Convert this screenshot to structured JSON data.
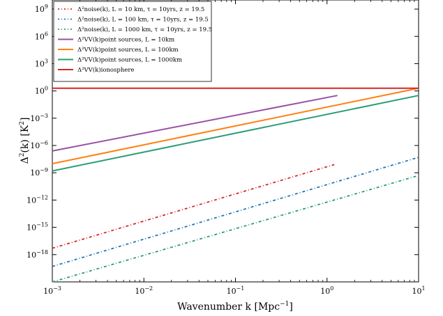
{
  "chart_data": {
    "type": "line",
    "xlabel": "Wavenumber k [Mpc",
    "xlabel_sup": "−1",
    "xlabel_end": "]",
    "ylabel": "Δ",
    "ylabel_sup": "2",
    "ylabel_mid": "(k) [K",
    "ylabel_sup2": "2",
    "ylabel_end": "]",
    "x_scale": "log",
    "y_scale": "log",
    "xlim": [
      0.001,
      10
    ],
    "ylim_exp": [
      -21,
      10
    ],
    "x_ticks": [
      {
        "value": 0.001,
        "base": "10",
        "exp": "−3"
      },
      {
        "value": 0.01,
        "base": "10",
        "exp": "−2"
      },
      {
        "value": 0.1,
        "base": "10",
        "exp": "−1"
      },
      {
        "value": 1,
        "base": "10",
        "exp": "0"
      },
      {
        "value": 10,
        "base": "10",
        "exp": "1"
      }
    ],
    "y_ticks": [
      {
        "exp_value": 9,
        "base": "10",
        "exp": "9"
      },
      {
        "exp_value": 6,
        "base": "10",
        "exp": "6"
      },
      {
        "exp_value": 3,
        "base": "10",
        "exp": "3"
      },
      {
        "exp_value": 0,
        "base": "10",
        "exp": "0"
      },
      {
        "exp_value": -3,
        "base": "10",
        "exp": "−3"
      },
      {
        "exp_value": -6,
        "base": "10",
        "exp": "−6"
      },
      {
        "exp_value": -9,
        "base": "10",
        "exp": "−9"
      },
      {
        "exp_value": -12,
        "base": "10",
        "exp": "−12"
      },
      {
        "exp_value": -15,
        "base": "10",
        "exp": "−15"
      },
      {
        "exp_value": -18,
        "base": "10",
        "exp": "−18"
      }
    ],
    "legend_position": "top-left",
    "series": [
      {
        "label": "Δ²noise(k), L = 10 km, τ = 10yrs, z = 19.5",
        "color": "#d62728",
        "style": "dashdot",
        "x": [
          0.001,
          1.2
        ],
        "y_exp": [
          -17.3,
          -8.1
        ]
      },
      {
        "label": "Δ²noise(k), L = 100 km, τ = 10yrs, z = 19.5",
        "color": "#1f77b4",
        "style": "dashdot",
        "x": [
          0.001,
          10
        ],
        "y_exp": [
          -19.3,
          -7.3
        ]
      },
      {
        "label": "Δ²noise(k), L = 1000 km, τ = 10yrs, z = 19.5",
        "color": "#2a9d74",
        "style": "dashdot",
        "x": [
          0.001,
          10
        ],
        "y_exp": [
          -21.0,
          -9.3
        ]
      },
      {
        "label": "Δ²VV(k)point sources, L = 10km",
        "color": "#9b4fa6",
        "style": "solid",
        "x": [
          0.001,
          1.3
        ],
        "y_exp": [
          -6.6,
          -0.5
        ]
      },
      {
        "label": "Δ²VV(k)point sources, L = 100km",
        "color": "#ff7f0e",
        "style": "solid",
        "x": [
          0.001,
          10
        ],
        "y_exp": [
          -8.0,
          0.3
        ]
      },
      {
        "label": "Δ²VV(k)point sources, L = 1000km",
        "color": "#2a9d74",
        "style": "solid",
        "x": [
          0.001,
          10
        ],
        "y_exp": [
          -8.8,
          -0.5
        ]
      },
      {
        "label": "Δ²VV(k)ionosphere",
        "color": "#d62728",
        "style": "solid",
        "x": [
          0.001,
          10
        ],
        "y_exp": [
          0.3,
          0.3
        ]
      }
    ]
  }
}
